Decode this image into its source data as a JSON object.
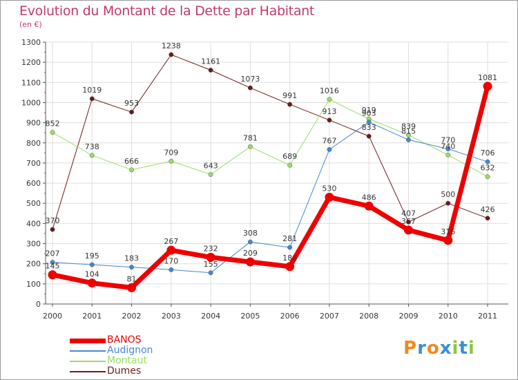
{
  "chart_data": {
    "type": "line",
    "title": "Evolution du Montant de la Dette par Habitant",
    "subtitle": "(en €)",
    "x": [
      "2000",
      "2001",
      "2002",
      "2003",
      "2004",
      "2005",
      "2006",
      "2007",
      "2008",
      "2009",
      "2010",
      "2011"
    ],
    "ylim": [
      0,
      1300
    ],
    "yticks": [
      0,
      100,
      200,
      300,
      400,
      500,
      600,
      700,
      800,
      900,
      1000,
      1100,
      1200,
      1300
    ],
    "grid": true,
    "legend": "bottom-left",
    "series": [
      {
        "name": "Dumes",
        "color": "#6b1a1a",
        "values": [
          370,
          1019,
          953,
          1238,
          1161,
          1073,
          991,
          913,
          833,
          407,
          500,
          426
        ]
      },
      {
        "name": "Montaut",
        "color": "#99dd66",
        "values": [
          852,
          738,
          666,
          709,
          643,
          781,
          689,
          1016,
          919,
          839,
          740,
          632
        ]
      },
      {
        "name": "Audignon",
        "color": "#4488cc",
        "values": [
          207,
          195,
          183,
          170,
          155,
          308,
          281,
          767,
          903,
          815,
          770,
          706
        ]
      },
      {
        "name": "BANOS",
        "color": "#ee0000",
        "values": [
          145,
          104,
          81,
          267,
          232,
          209,
          186,
          530,
          486,
          367,
          316,
          1081
        ]
      }
    ],
    "labels": [
      {
        "s": 3,
        "i": 0,
        "text": "145"
      },
      {
        "s": 3,
        "i": 1,
        "text": "104"
      },
      {
        "s": 3,
        "i": 2,
        "text": "81"
      },
      {
        "s": 3,
        "i": 3,
        "text": "267"
      },
      {
        "s": 3,
        "i": 4,
        "text": "232"
      },
      {
        "s": 3,
        "i": 5,
        "text": "209"
      },
      {
        "s": 3,
        "i": 6,
        "text": "186"
      },
      {
        "s": 3,
        "i": 7,
        "text": "530"
      },
      {
        "s": 3,
        "i": 8,
        "text": "486"
      },
      {
        "s": 3,
        "i": 9,
        "text": "367"
      },
      {
        "s": 3,
        "i": 10,
        "text": "316"
      },
      {
        "s": 3,
        "i": 11,
        "text": "1081"
      },
      {
        "s": 2,
        "i": 0,
        "text": "207"
      },
      {
        "s": 2,
        "i": 1,
        "text": "195"
      },
      {
        "s": 2,
        "i": 2,
        "text": "183"
      },
      {
        "s": 2,
        "i": 3,
        "text": "170"
      },
      {
        "s": 2,
        "i": 4,
        "text": "155"
      },
      {
        "s": 2,
        "i": 5,
        "text": "308"
      },
      {
        "s": 2,
        "i": 6,
        "text": "281"
      },
      {
        "s": 2,
        "i": 7,
        "text": "767"
      },
      {
        "s": 2,
        "i": 8,
        "text": "903"
      },
      {
        "s": 2,
        "i": 9,
        "text": "815"
      },
      {
        "s": 2,
        "i": 10,
        "text": "770"
      },
      {
        "s": 2,
        "i": 11,
        "text": "706"
      },
      {
        "s": 1,
        "i": 0,
        "text": "852"
      },
      {
        "s": 1,
        "i": 1,
        "text": "738"
      },
      {
        "s": 1,
        "i": 2,
        "text": "666"
      },
      {
        "s": 1,
        "i": 3,
        "text": "709"
      },
      {
        "s": 1,
        "i": 4,
        "text": "643"
      },
      {
        "s": 1,
        "i": 5,
        "text": "781"
      },
      {
        "s": 1,
        "i": 6,
        "text": "689"
      },
      {
        "s": 1,
        "i": 7,
        "text": "1016"
      },
      {
        "s": 1,
        "i": 8,
        "text": "919"
      },
      {
        "s": 1,
        "i": 9,
        "text": "839"
      },
      {
        "s": 1,
        "i": 10,
        "text": "740"
      },
      {
        "s": 1,
        "i": 11,
        "text": "632"
      },
      {
        "s": 0,
        "i": 0,
        "text": "370"
      },
      {
        "s": 0,
        "i": 1,
        "text": "1019"
      },
      {
        "s": 0,
        "i": 2,
        "text": "953"
      },
      {
        "s": 0,
        "i": 3,
        "text": "1238"
      },
      {
        "s": 0,
        "i": 4,
        "text": "1161"
      },
      {
        "s": 0,
        "i": 5,
        "text": "1073"
      },
      {
        "s": 0,
        "i": 6,
        "text": "991"
      },
      {
        "s": 0,
        "i": 7,
        "text": "913"
      },
      {
        "s": 0,
        "i": 8,
        "text": "833"
      },
      {
        "s": 0,
        "i": 9,
        "text": "407"
      },
      {
        "s": 0,
        "i": 10,
        "text": "500"
      },
      {
        "s": 0,
        "i": 11,
        "text": "426"
      }
    ]
  },
  "legend_items": [
    {
      "name": "BANOS",
      "color": "#ee0000"
    },
    {
      "name": "Audignon",
      "color": "#4488cc"
    },
    {
      "name": "Montaut",
      "color": "#99dd66"
    },
    {
      "name": "Dumes",
      "color": "#6b1a1a"
    }
  ],
  "logo": {
    "text": "Proxiti",
    "letters": [
      {
        "ch": "P",
        "color": "#f08a1c"
      },
      {
        "ch": "r",
        "color": "#3a8fd6"
      },
      {
        "ch": "o",
        "color": "#f08a1c"
      },
      {
        "ch": "x",
        "color": "#3a8fd6"
      },
      {
        "ch": "i",
        "color": "#8cc63f"
      },
      {
        "ch": "t",
        "color": "#3a8fd6"
      },
      {
        "ch": "i",
        "color": "#8cc63f"
      }
    ]
  }
}
